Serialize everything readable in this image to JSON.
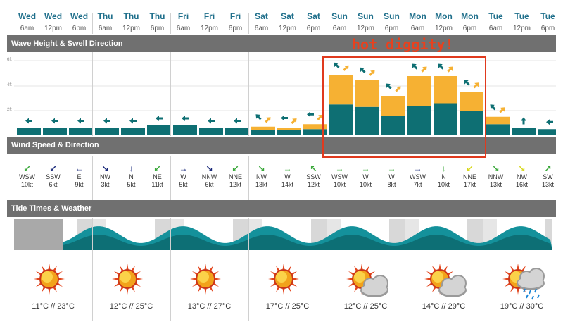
{
  "columns": [
    {
      "day": "Wed",
      "time": "6am"
    },
    {
      "day": "Wed",
      "time": "12pm"
    },
    {
      "day": "Wed",
      "time": "6pm"
    },
    {
      "day": "Thu",
      "time": "6am"
    },
    {
      "day": "Thu",
      "time": "12pm"
    },
    {
      "day": "Thu",
      "time": "6pm"
    },
    {
      "day": "Fri",
      "time": "6am"
    },
    {
      "day": "Fri",
      "time": "12pm"
    },
    {
      "day": "Fri",
      "time": "6pm"
    },
    {
      "day": "Sat",
      "time": "6am"
    },
    {
      "day": "Sat",
      "time": "12pm"
    },
    {
      "day": "Sat",
      "time": "6pm"
    },
    {
      "day": "Sun",
      "time": "6am"
    },
    {
      "day": "Sun",
      "time": "12pm"
    },
    {
      "day": "Sun",
      "time": "6pm"
    },
    {
      "day": "Mon",
      "time": "6am"
    },
    {
      "day": "Mon",
      "time": "12pm"
    },
    {
      "day": "Mon",
      "time": "6pm"
    },
    {
      "day": "Tue",
      "time": "6am"
    },
    {
      "day": "Tue",
      "time": "12pm"
    },
    {
      "day": "Tue",
      "time": "6pm"
    }
  ],
  "sections": {
    "wave": "Wave Height & Swell Direction",
    "wind": "Wind Speed & Direction",
    "tide": "Tide Times & Weather"
  },
  "wave_axis_labels": [
    "6ft",
    "4ft",
    "2ft"
  ],
  "colors": {
    "swell_teal": "#0e6f73",
    "swell_orange": "#f6b133",
    "header_bar": "#707070",
    "day_text": "#1f6f8b",
    "tide_teal": "#14919b",
    "annotation": "#e8411e"
  },
  "annotation": {
    "label": "hot diggity!"
  },
  "chart_data": {
    "type": "bar",
    "title": "Wave Height & Swell Direction",
    "categories": [
      "Wed 6am",
      "Wed 12pm",
      "Wed 6pm",
      "Thu 6am",
      "Thu 12pm",
      "Thu 6pm",
      "Fri 6am",
      "Fri 12pm",
      "Fri 6pm",
      "Sat 6am",
      "Sat 12pm",
      "Sat 6pm",
      "Sun 6am",
      "Sun 12pm",
      "Sun 6pm",
      "Mon 6am",
      "Mon 12pm",
      "Mon 6pm",
      "Tue 6am",
      "Tue 12pm",
      "Tue 6pm"
    ],
    "ylim": [
      0,
      6
    ],
    "series": [
      {
        "values": [
          0.6,
          0.6,
          0.6,
          0.6,
          0.6,
          0.8,
          0.8,
          0.6,
          0.6,
          0.4,
          0.4,
          0.5,
          2.5,
          2.3,
          1.6,
          2.4,
          2.6,
          2.0,
          0.9,
          0.6,
          0.5
        ]
      },
      {
        "values": [
          0,
          0,
          0,
          0,
          0,
          0,
          0,
          0,
          0,
          0.3,
          0.2,
          0.4,
          2.4,
          2.2,
          1.6,
          2.4,
          2.2,
          1.5,
          0.6,
          0,
          0
        ]
      }
    ],
    "swell_arrows": [
      [
        "left"
      ],
      [
        "left"
      ],
      [
        "left"
      ],
      [
        "left"
      ],
      [
        "left"
      ],
      [
        "left"
      ],
      [
        "left"
      ],
      [
        "left"
      ],
      [
        "left"
      ],
      [
        "up-left",
        "up-right"
      ],
      [
        "left",
        "up-right"
      ],
      [
        "left",
        "up-right"
      ],
      [
        "up-left",
        "up-right"
      ],
      [
        "up-left",
        "up-right"
      ],
      [
        "up-left",
        "up-right"
      ],
      [
        "up-left",
        "up-right"
      ],
      [
        "up-left",
        "up-right"
      ],
      [
        "up-left",
        "up-right"
      ],
      [
        "up-left",
        "up-right"
      ],
      [
        "up"
      ],
      [
        "left"
      ]
    ]
  },
  "wind": [
    {
      "dir": "WSW",
      "speed": "10kt",
      "arrow": "↙",
      "color": "#3aa83a"
    },
    {
      "dir": "SSW",
      "speed": "6kt",
      "arrow": "↙",
      "color": "#1a2a7a"
    },
    {
      "dir": "E",
      "speed": "9kt",
      "arrow": "←",
      "color": "#1a2a7a"
    },
    {
      "dir": "NW",
      "speed": "3kt",
      "arrow": "↘",
      "color": "#1a2a7a"
    },
    {
      "dir": "N",
      "speed": "5kt",
      "arrow": "↓",
      "color": "#1a2a7a"
    },
    {
      "dir": "NE",
      "speed": "11kt",
      "arrow": "↙",
      "color": "#3aa83a"
    },
    {
      "dir": "W",
      "speed": "5kt",
      "arrow": "→",
      "color": "#1a2a7a"
    },
    {
      "dir": "NNW",
      "speed": "6kt",
      "arrow": "↘",
      "color": "#1a2a7a"
    },
    {
      "dir": "NNE",
      "speed": "12kt",
      "arrow": "↙",
      "color": "#3aa83a"
    },
    {
      "dir": "NW",
      "speed": "13kt",
      "arrow": "↘",
      "color": "#3aa83a"
    },
    {
      "dir": "W",
      "speed": "14kt",
      "arrow": "→",
      "color": "#3aa83a"
    },
    {
      "dir": "SSW",
      "speed": "12kt",
      "arrow": "↖",
      "color": "#3aa83a"
    },
    {
      "dir": "WSW",
      "speed": "10kt",
      "arrow": "→",
      "color": "#3aa83a"
    },
    {
      "dir": "W",
      "speed": "10kt",
      "arrow": "→",
      "color": "#3aa83a"
    },
    {
      "dir": "W",
      "speed": "8kt",
      "arrow": "→",
      "color": "#3aa83a"
    },
    {
      "dir": "WSW",
      "speed": "7kt",
      "arrow": "→",
      "color": "#1a2a7a"
    },
    {
      "dir": "N",
      "speed": "10kt",
      "arrow": "↓",
      "color": "#3aa83a"
    },
    {
      "dir": "NNE",
      "speed": "17kt",
      "arrow": "↙",
      "color": "#d8d81a"
    },
    {
      "dir": "NNW",
      "speed": "13kt",
      "arrow": "↘",
      "color": "#3aa83a"
    },
    {
      "dir": "NW",
      "speed": "16kt",
      "arrow": "↘",
      "color": "#d8d81a"
    },
    {
      "dir": "SW",
      "speed": "13kt",
      "arrow": "↗",
      "color": "#3aa83a"
    }
  ],
  "weather": [
    {
      "icon": "sun-icon",
      "temp": "11°C // 23°C"
    },
    {
      "icon": "sun-icon",
      "temp": "12°C // 25°C"
    },
    {
      "icon": "sun-icon",
      "temp": "13°C // 27°C"
    },
    {
      "icon": "sun-icon",
      "temp": "17°C // 25°C"
    },
    {
      "icon": "sun-cloud-icon",
      "temp": "12°C // 25°C"
    },
    {
      "icon": "sun-cloud-icon",
      "temp": "14°C // 29°C"
    },
    {
      "icon": "sun-cloud-rain-icon",
      "temp": "19°C // 30°C"
    }
  ]
}
